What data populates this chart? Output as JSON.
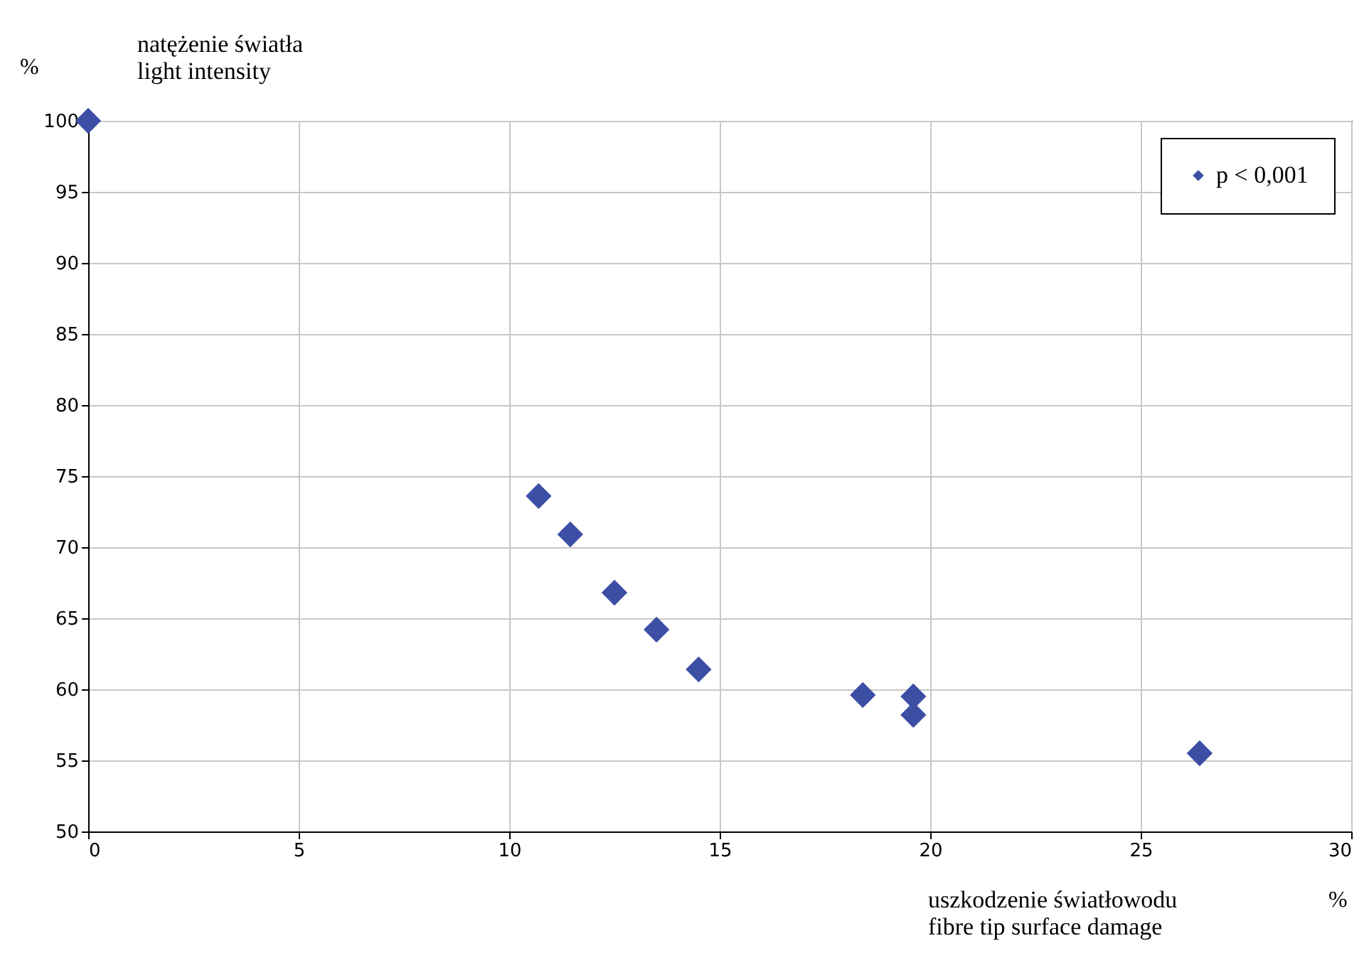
{
  "chart_data": {
    "type": "scatter",
    "xlabel": "uszkodzenie światłowodu\nfibre tip surface damage",
    "ylabel": "natężenie światła\nlight intensity",
    "annotations": [
      "%",
      "%"
    ],
    "xlim": [
      0,
      30
    ],
    "xticks": [
      0,
      5,
      10,
      15,
      20,
      25,
      30
    ],
    "ylim": [
      50,
      100
    ],
    "yticks": [
      50,
      55,
      60,
      65,
      70,
      75,
      80,
      85,
      90,
      95,
      100
    ],
    "grid": true,
    "legend": "top right",
    "marker": "diamond",
    "series": [
      {
        "name": "p < 0,001",
        "color": "#3d4fa5",
        "x": [
          0,
          10.7,
          11.45,
          12.5,
          13.5,
          14.5,
          18.4,
          19.6,
          19.6,
          26.4
        ],
        "values": [
          100,
          73.6,
          70.9,
          66.8,
          64.2,
          61.4,
          59.6,
          59.5,
          58.2,
          55.5
        ]
      }
    ]
  }
}
